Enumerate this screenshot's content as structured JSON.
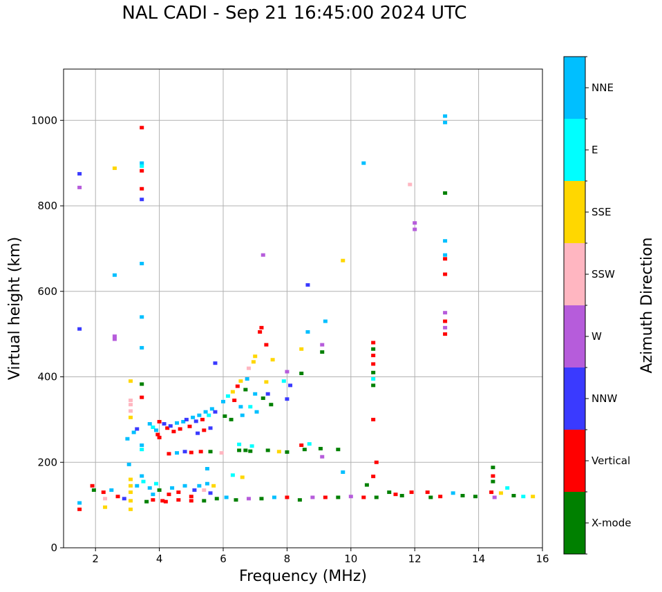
{
  "chart_data": {
    "type": "scatter",
    "title": "NAL CADI - Sep 21 16:45:00 2024 UTC",
    "xlabel": "Frequency (MHz)",
    "ylabel": "Virtual height (km)",
    "xlim": [
      1,
      16
    ],
    "ylim": [
      0,
      1120
    ],
    "xticks": [
      2,
      4,
      6,
      8,
      10,
      12,
      14,
      16
    ],
    "yticks": [
      0,
      200,
      400,
      600,
      800,
      1000
    ],
    "grid": true,
    "colorbar": {
      "label": "Azimuth Direction",
      "categories": [
        {
          "name": "X-mode",
          "color": "#008000"
        },
        {
          "name": "Vertical",
          "color": "#ff0000"
        },
        {
          "name": "NNW",
          "color": "#3a3aff"
        },
        {
          "name": "W",
          "color": "#b65cdb"
        },
        {
          "name": "SSW",
          "color": "#ffb6c1"
        },
        {
          "name": "SSE",
          "color": "#ffd700"
        },
        {
          "name": "E",
          "color": "#00ffff"
        },
        {
          "name": "NNE",
          "color": "#00bfff"
        }
      ]
    },
    "points": [
      [
        1.5,
        875,
        "NNW"
      ],
      [
        1.5,
        843,
        "W"
      ],
      [
        1.5,
        512,
        "NNW"
      ],
      [
        2.6,
        888,
        "SSE"
      ],
      [
        2.6,
        638,
        "NNE"
      ],
      [
        2.6,
        495,
        "W"
      ],
      [
        2.6,
        488,
        "W"
      ],
      [
        3.45,
        983,
        "Vertical"
      ],
      [
        3.45,
        900,
        "NNE"
      ],
      [
        3.45,
        893,
        "E"
      ],
      [
        3.45,
        882,
        "Vertical"
      ],
      [
        3.45,
        840,
        "Vertical"
      ],
      [
        3.45,
        815,
        "NNW"
      ],
      [
        3.45,
        665,
        "NNE"
      ],
      [
        3.45,
        540,
        "NNE"
      ],
      [
        3.45,
        468,
        "NNE"
      ],
      [
        3.45,
        383,
        "X-mode"
      ],
      [
        3.45,
        352,
        "Vertical"
      ],
      [
        3.1,
        390,
        "SSE"
      ],
      [
        3.1,
        345,
        "SSW"
      ],
      [
        3.1,
        335,
        "SSW"
      ],
      [
        3.1,
        320,
        "SSW"
      ],
      [
        3.1,
        305,
        "SSE"
      ],
      [
        3.0,
        255,
        "NNE"
      ],
      [
        3.2,
        270,
        "NNE"
      ],
      [
        3.3,
        278,
        "NNW"
      ],
      [
        3.45,
        240,
        "NNE"
      ],
      [
        3.45,
        230,
        "E"
      ],
      [
        3.7,
        290,
        "NNE"
      ],
      [
        3.8,
        282,
        "E"
      ],
      [
        3.9,
        275,
        "NNE"
      ],
      [
        3.95,
        265,
        "Vertical"
      ],
      [
        4.0,
        295,
        "Vertical"
      ],
      [
        4.0,
        258,
        "Vertical"
      ],
      [
        4.15,
        290,
        "NNW"
      ],
      [
        4.25,
        280,
        "Vertical"
      ],
      [
        4.35,
        285,
        "NNW"
      ],
      [
        4.45,
        272,
        "Vertical"
      ],
      [
        4.55,
        292,
        "NNE"
      ],
      [
        4.65,
        278,
        "Vertical"
      ],
      [
        4.75,
        295,
        "NNE"
      ],
      [
        4.85,
        300,
        "NNW"
      ],
      [
        4.95,
        284,
        "Vertical"
      ],
      [
        5.05,
        305,
        "NNE"
      ],
      [
        5.15,
        296,
        "NNW"
      ],
      [
        5.25,
        310,
        "NNE"
      ],
      [
        5.35,
        300,
        "Vertical"
      ],
      [
        5.45,
        318,
        "NNE"
      ],
      [
        5.55,
        310,
        "E"
      ],
      [
        5.65,
        325,
        "NNE"
      ],
      [
        5.75,
        318,
        "NNW"
      ],
      [
        5.2,
        268,
        "NNW"
      ],
      [
        5.4,
        275,
        "Vertical"
      ],
      [
        5.6,
        280,
        "NNW"
      ],
      [
        5.75,
        432,
        "NNW"
      ],
      [
        6.0,
        342,
        "NNE"
      ],
      [
        6.05,
        308,
        "X-mode"
      ],
      [
        6.15,
        355,
        "E"
      ],
      [
        6.25,
        300,
        "X-mode"
      ],
      [
        6.3,
        365,
        "SSE"
      ],
      [
        6.35,
        345,
        "Vertical"
      ],
      [
        6.45,
        378,
        "Vertical"
      ],
      [
        6.55,
        390,
        "SSE"
      ],
      [
        6.55,
        330,
        "NNE"
      ],
      [
        6.6,
        310,
        "NNE"
      ],
      [
        6.7,
        370,
        "X-mode"
      ],
      [
        6.75,
        395,
        "NNE"
      ],
      [
        6.8,
        420,
        "SSW"
      ],
      [
        6.85,
        330,
        "E"
      ],
      [
        6.95,
        435,
        "SSE"
      ],
      [
        7.0,
        448,
        "SSE"
      ],
      [
        7.0,
        360,
        "NNE"
      ],
      [
        7.05,
        318,
        "NNE"
      ],
      [
        7.15,
        505,
        "Vertical"
      ],
      [
        7.2,
        515,
        "Vertical"
      ],
      [
        7.25,
        350,
        "X-mode"
      ],
      [
        7.35,
        388,
        "SSE"
      ],
      [
        7.4,
        360,
        "NNW"
      ],
      [
        7.5,
        335,
        "X-mode"
      ],
      [
        7.55,
        440,
        "SSE"
      ],
      [
        7.25,
        685,
        "W"
      ],
      [
        7.35,
        475,
        "Vertical"
      ],
      [
        7.9,
        390,
        "E"
      ],
      [
        8.0,
        348,
        "NNW"
      ],
      [
        8.1,
        380,
        "NNW"
      ],
      [
        8.0,
        412,
        "W"
      ],
      [
        8.45,
        465,
        "SSE"
      ],
      [
        8.45,
        408,
        "X-mode"
      ],
      [
        8.65,
        615,
        "NNW"
      ],
      [
        8.65,
        505,
        "NNE"
      ],
      [
        9.1,
        475,
        "W"
      ],
      [
        9.1,
        458,
        "X-mode"
      ],
      [
        9.2,
        530,
        "NNE"
      ],
      [
        9.75,
        672,
        "SSE"
      ],
      [
        10.4,
        900,
        "NNE"
      ],
      [
        11.85,
        850,
        "SSW"
      ],
      [
        12.0,
        760,
        "W"
      ],
      [
        12.0,
        745,
        "W"
      ],
      [
        6.5,
        242,
        "E"
      ],
      [
        6.9,
        238,
        "E"
      ],
      [
        7.4,
        228,
        "X-mode"
      ],
      [
        7.75,
        225,
        "SSE"
      ],
      [
        8.0,
        224,
        "X-mode"
      ],
      [
        8.45,
        240,
        "Vertical"
      ],
      [
        8.55,
        230,
        "X-mode"
      ],
      [
        8.7,
        243,
        "E"
      ],
      [
        9.05,
        232,
        "X-mode"
      ],
      [
        9.1,
        213,
        "W"
      ],
      [
        9.6,
        230,
        "X-mode"
      ],
      [
        9.75,
        177,
        "NNE"
      ],
      [
        10.5,
        147,
        "X-mode"
      ],
      [
        10.7,
        167,
        "Vertical"
      ],
      [
        10.8,
        200,
        "Vertical"
      ],
      [
        4.3,
        220,
        "Vertical"
      ],
      [
        4.55,
        222,
        "NNE"
      ],
      [
        4.8,
        225,
        "NNW"
      ],
      [
        5.0,
        223,
        "Vertical"
      ],
      [
        5.3,
        225,
        "Vertical"
      ],
      [
        5.6,
        225,
        "X-mode"
      ],
      [
        5.95,
        222,
        "SSW"
      ],
      [
        6.5,
        228,
        "X-mode"
      ],
      [
        6.7,
        228,
        "X-mode"
      ],
      [
        6.85,
        226,
        "X-mode"
      ],
      [
        1.5,
        105,
        "NNE"
      ],
      [
        1.5,
        90,
        "Vertical"
      ],
      [
        1.9,
        145,
        "Vertical"
      ],
      [
        1.95,
        135,
        "X-mode"
      ],
      [
        2.25,
        130,
        "Vertical"
      ],
      [
        2.3,
        95,
        "SSE"
      ],
      [
        2.3,
        115,
        "SSW"
      ],
      [
        2.5,
        135,
        "NNE"
      ],
      [
        2.7,
        120,
        "Vertical"
      ],
      [
        2.9,
        115,
        "NNW"
      ],
      [
        3.1,
        160,
        "SSE"
      ],
      [
        3.1,
        145,
        "SSE"
      ],
      [
        3.1,
        130,
        "SSE"
      ],
      [
        3.1,
        110,
        "SSE"
      ],
      [
        3.1,
        90,
        "SSE"
      ],
      [
        3.05,
        195,
        "NNE"
      ],
      [
        3.3,
        145,
        "NNE"
      ],
      [
        3.45,
        168,
        "NNE"
      ],
      [
        3.5,
        155,
        "E"
      ],
      [
        3.7,
        140,
        "NNE"
      ],
      [
        3.8,
        125,
        "NNE"
      ],
      [
        3.9,
        150,
        "E"
      ],
      [
        4.0,
        135,
        "X-mode"
      ],
      [
        4.1,
        110,
        "Vertical"
      ],
      [
        4.3,
        125,
        "Vertical"
      ],
      [
        4.4,
        140,
        "NNE"
      ],
      [
        4.6,
        130,
        "Vertical"
      ],
      [
        4.8,
        145,
        "NNE"
      ],
      [
        5.0,
        120,
        "Vertical"
      ],
      [
        5.1,
        135,
        "NNW"
      ],
      [
        5.25,
        145,
        "NNE"
      ],
      [
        5.4,
        135,
        "SSW"
      ],
      [
        5.5,
        185,
        "NNE"
      ],
      [
        5.5,
        150,
        "NNE"
      ],
      [
        5.6,
        128,
        "NNW"
      ],
      [
        5.7,
        145,
        "SSE"
      ],
      [
        6.3,
        170,
        "E"
      ],
      [
        6.6,
        165,
        "SSE"
      ],
      [
        3.6,
        108,
        "X-mode"
      ],
      [
        3.8,
        112,
        "Vertical"
      ],
      [
        4.2,
        108,
        "Vertical"
      ],
      [
        4.6,
        112,
        "Vertical"
      ],
      [
        5.0,
        110,
        "Vertical"
      ],
      [
        5.4,
        110,
        "X-mode"
      ],
      [
        5.8,
        115,
        "X-mode"
      ],
      [
        6.1,
        118,
        "NNE"
      ],
      [
        6.4,
        112,
        "X-mode"
      ],
      [
        6.8,
        115,
        "W"
      ],
      [
        7.2,
        115,
        "X-mode"
      ],
      [
        7.6,
        118,
        "NNE"
      ],
      [
        8.0,
        118,
        "Vertical"
      ],
      [
        8.4,
        112,
        "X-mode"
      ],
      [
        8.8,
        118,
        "W"
      ],
      [
        9.2,
        118,
        "Vertical"
      ],
      [
        9.6,
        118,
        "X-mode"
      ],
      [
        10.0,
        120,
        "W"
      ],
      [
        10.4,
        118,
        "Vertical"
      ],
      [
        10.8,
        118,
        "X-mode"
      ],
      [
        11.2,
        130,
        "X-mode"
      ],
      [
        11.4,
        125,
        "Vertical"
      ],
      [
        11.6,
        122,
        "X-mode"
      ],
      [
        11.9,
        130,
        "Vertical"
      ],
      [
        12.4,
        130,
        "Vertical"
      ],
      [
        12.5,
        118,
        "X-mode"
      ],
      [
        12.8,
        120,
        "Vertical"
      ],
      [
        13.2,
        128,
        "NNE"
      ],
      [
        13.5,
        122,
        "X-mode"
      ],
      [
        13.9,
        120,
        "X-mode"
      ],
      [
        14.4,
        130,
        "Vertical"
      ],
      [
        14.5,
        118,
        "W"
      ],
      [
        14.7,
        128,
        "SSE"
      ],
      [
        14.9,
        140,
        "E"
      ],
      [
        15.1,
        122,
        "X-mode"
      ],
      [
        15.4,
        120,
        "E"
      ],
      [
        15.7,
        120,
        "SSE"
      ],
      [
        14.45,
        188,
        "X-mode"
      ],
      [
        14.45,
        168,
        "Vertical"
      ],
      [
        14.45,
        155,
        "X-mode"
      ],
      [
        10.7,
        480,
        "Vertical"
      ],
      [
        10.7,
        465,
        "X-mode"
      ],
      [
        10.7,
        450,
        "Vertical"
      ],
      [
        10.7,
        430,
        "Vertical"
      ],
      [
        10.7,
        410,
        "X-mode"
      ],
      [
        10.7,
        395,
        "E"
      ],
      [
        10.7,
        380,
        "X-mode"
      ],
      [
        10.7,
        300,
        "Vertical"
      ],
      [
        12.95,
        1010,
        "NNE"
      ],
      [
        12.95,
        995,
        "NNE"
      ],
      [
        12.95,
        830,
        "X-mode"
      ],
      [
        12.95,
        718,
        "NNE"
      ],
      [
        12.95,
        685,
        "NNE"
      ],
      [
        12.95,
        676,
        "Vertical"
      ],
      [
        12.95,
        640,
        "Vertical"
      ],
      [
        12.95,
        550,
        "W"
      ],
      [
        12.95,
        530,
        "Vertical"
      ],
      [
        12.95,
        515,
        "W"
      ],
      [
        12.95,
        500,
        "Vertical"
      ]
    ]
  }
}
